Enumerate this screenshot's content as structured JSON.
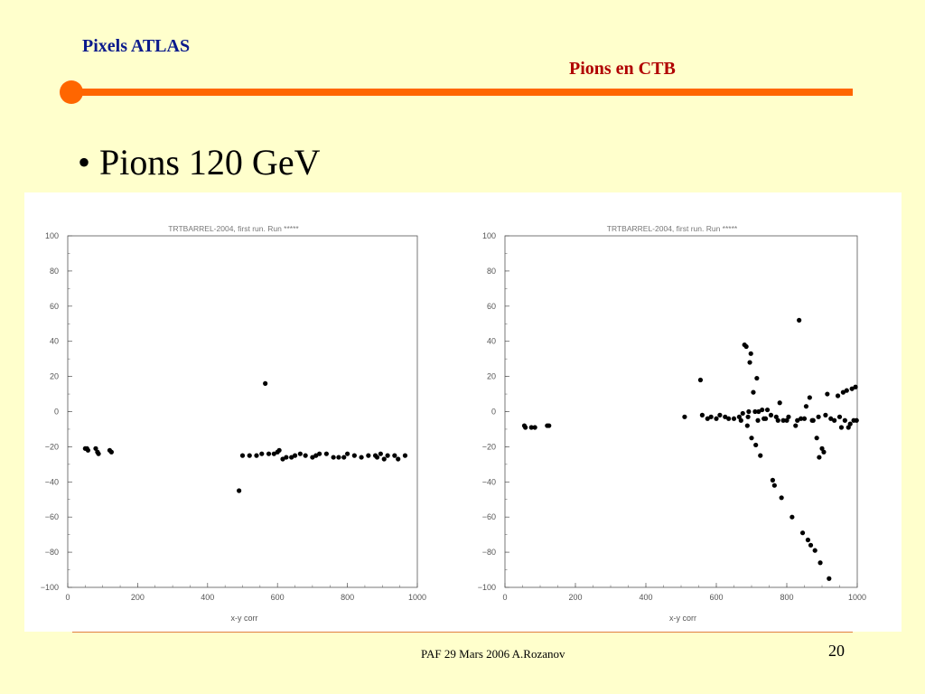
{
  "header": {
    "brand": "Pixels ATLAS",
    "section_title": "Pions en CTB",
    "accent_color": "#ff6600"
  },
  "bullet": "• Pions 120 GeV",
  "footer": {
    "text": "PAF  29 Mars  2006 A.Rozanov",
    "page_number": "20"
  },
  "chart_data": [
    {
      "type": "scatter",
      "title": "TRTBARREL-2004, first run.  Run *****",
      "xlabel": "x-y corr",
      "ylabel": "",
      "xlim": [
        0,
        1000
      ],
      "ylim": [
        -100,
        100
      ],
      "x_ticks": [
        "0",
        "200",
        "400",
        "600",
        "800",
        "1000"
      ],
      "y_ticks": [
        "100",
        "80",
        "60",
        "40",
        "20",
        "0",
        "-20",
        "-40",
        "-60",
        "-80",
        "-100"
      ],
      "grid": false,
      "points": [
        [
          50,
          -21
        ],
        [
          55,
          -21
        ],
        [
          58,
          -22
        ],
        [
          80,
          -21
        ],
        [
          85,
          -23
        ],
        [
          88,
          -24
        ],
        [
          120,
          -22
        ],
        [
          125,
          -23
        ],
        [
          490,
          -45
        ],
        [
          500,
          -25
        ],
        [
          520,
          -25
        ],
        [
          540,
          -25
        ],
        [
          555,
          -24
        ],
        [
          565,
          16
        ],
        [
          575,
          -24
        ],
        [
          590,
          -24
        ],
        [
          600,
          -23
        ],
        [
          605,
          -22
        ],
        [
          615,
          -27
        ],
        [
          625,
          -26
        ],
        [
          640,
          -26
        ],
        [
          650,
          -25
        ],
        [
          665,
          -24
        ],
        [
          680,
          -25
        ],
        [
          700,
          -26
        ],
        [
          710,
          -25
        ],
        [
          720,
          -24
        ],
        [
          740,
          -24
        ],
        [
          760,
          -26
        ],
        [
          775,
          -26
        ],
        [
          790,
          -26
        ],
        [
          800,
          -24
        ],
        [
          820,
          -25
        ],
        [
          840,
          -26
        ],
        [
          860,
          -25
        ],
        [
          880,
          -25
        ],
        [
          885,
          -26
        ],
        [
          895,
          -24
        ],
        [
          905,
          -27
        ],
        [
          915,
          -25
        ],
        [
          935,
          -25
        ],
        [
          945,
          -27
        ],
        [
          965,
          -25
        ]
      ]
    },
    {
      "type": "scatter",
      "title": "TRTBARREL-2004, first run.  Run *****",
      "xlabel": "x-y corr",
      "ylabel": "",
      "xlim": [
        0,
        1000
      ],
      "ylim": [
        -100,
        100
      ],
      "x_ticks": [
        "0",
        "200",
        "400",
        "600",
        "800",
        "1000"
      ],
      "y_ticks": [
        "100",
        "80",
        "60",
        "40",
        "20",
        "0",
        "-20",
        "-40",
        "-60",
        "-80",
        "-100"
      ],
      "grid": false,
      "points": [
        [
          55,
          -8
        ],
        [
          58,
          -9
        ],
        [
          75,
          -9
        ],
        [
          85,
          -9
        ],
        [
          120,
          -8
        ],
        [
          125,
          -8
        ],
        [
          510,
          -3
        ],
        [
          555,
          18
        ],
        [
          560,
          -2
        ],
        [
          575,
          -4
        ],
        [
          585,
          -3
        ],
        [
          600,
          -4
        ],
        [
          610,
          -2
        ],
        [
          625,
          -3
        ],
        [
          635,
          -4
        ],
        [
          650,
          -4
        ],
        [
          665,
          -3
        ],
        [
          670,
          -5
        ],
        [
          675,
          -1
        ],
        [
          680,
          38
        ],
        [
          685,
          37
        ],
        [
          688,
          -8
        ],
        [
          690,
          -3
        ],
        [
          692,
          0
        ],
        [
          695,
          28
        ],
        [
          698,
          33
        ],
        [
          700,
          -15
        ],
        [
          705,
          11
        ],
        [
          710,
          0
        ],
        [
          712,
          -19
        ],
        [
          715,
          19
        ],
        [
          718,
          -5
        ],
        [
          720,
          0
        ],
        [
          725,
          -25
        ],
        [
          730,
          1
        ],
        [
          735,
          -4
        ],
        [
          740,
          -4
        ],
        [
          745,
          1
        ],
        [
          755,
          -2
        ],
        [
          760,
          -39
        ],
        [
          765,
          -42
        ],
        [
          770,
          -3
        ],
        [
          775,
          -5
        ],
        [
          780,
          5
        ],
        [
          785,
          -49
        ],
        [
          790,
          -5
        ],
        [
          800,
          -5
        ],
        [
          805,
          -3
        ],
        [
          815,
          -60
        ],
        [
          825,
          -8
        ],
        [
          830,
          -5
        ],
        [
          835,
          52
        ],
        [
          840,
          -4
        ],
        [
          845,
          -69
        ],
        [
          850,
          -4
        ],
        [
          855,
          3
        ],
        [
          860,
          -73
        ],
        [
          865,
          8
        ],
        [
          868,
          -76
        ],
        [
          872,
          -5
        ],
        [
          875,
          -5
        ],
        [
          880,
          -79
        ],
        [
          885,
          -15
        ],
        [
          890,
          -3
        ],
        [
          892,
          -26
        ],
        [
          895,
          -86
        ],
        [
          900,
          -21
        ],
        [
          905,
          -23
        ],
        [
          910,
          -2
        ],
        [
          915,
          10
        ],
        [
          920,
          -95
        ],
        [
          925,
          -4
        ],
        [
          935,
          -5
        ],
        [
          945,
          9
        ],
        [
          950,
          -3
        ],
        [
          955,
          -9
        ],
        [
          960,
          11
        ],
        [
          965,
          -5
        ],
        [
          970,
          12
        ],
        [
          975,
          -9
        ],
        [
          980,
          -7
        ],
        [
          985,
          13
        ],
        [
          990,
          -5
        ],
        [
          995,
          14
        ],
        [
          998,
          -5
        ]
      ]
    }
  ]
}
